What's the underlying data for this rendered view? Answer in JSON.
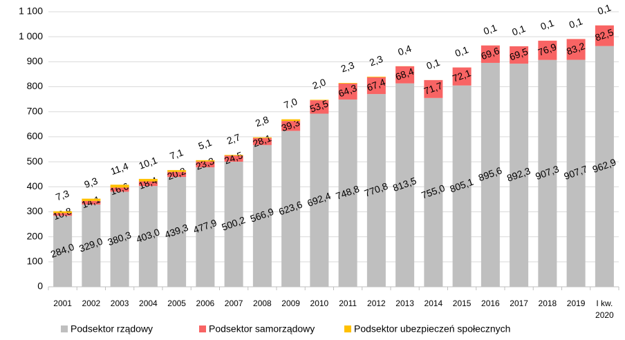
{
  "chart_data": {
    "type": "stacked-bar",
    "categories": [
      "2001",
      "2002",
      "2003",
      "2004",
      "2005",
      "2006",
      "2007",
      "2008",
      "2009",
      "2010",
      "2011",
      "2012",
      "2013",
      "2014",
      "2015",
      "2016",
      "2017",
      "2018",
      "2019",
      "I kw. 2020"
    ],
    "series": [
      {
        "name": "Podsektor rządowy",
        "color": "#bfbfbf",
        "values": [
          284.0,
          329.0,
          380.3,
          403.0,
          439.3,
          477.9,
          500.2,
          566.9,
          623.6,
          692.4,
          748.8,
          770.8,
          813.5,
          755.0,
          805.1,
          895.6,
          892.3,
          907.3,
          907.7,
          962.9
        ],
        "value_labels": [
          "284,0",
          "329,0",
          "380,3",
          "403,0",
          "439,3",
          "477,9",
          "500,2",
          "566,9",
          "623,6",
          "692,4",
          "748,8",
          "770,8",
          "813,5",
          "755,0",
          "805,1",
          "895,6",
          "892,3",
          "907,3",
          "907,7",
          "962,9"
        ]
      },
      {
        "name": "Podsektor samorządowy",
        "color": "#f86464",
        "values": [
          10.8,
          14.1,
          16.6,
          18.4,
          20.2,
          23.3,
          24.5,
          28.1,
          39.3,
          53.5,
          64.3,
          67.4,
          68.4,
          71.7,
          72.1,
          69.6,
          69.5,
          76.9,
          83.2,
          82.5
        ],
        "value_labels": [
          "10,8",
          "14,1",
          "16,6",
          "18,4",
          "20,2",
          "23,3",
          "24,5",
          "28,1",
          "39,3",
          "53,5",
          "64,3",
          "67,4",
          "68,4",
          "71,7",
          "72,1",
          "69,6",
          "69,5",
          "76,9",
          "83,2",
          "82,5"
        ]
      },
      {
        "name": "Podsektor ubezpieczeń społecznych",
        "color": "#ffc000",
        "values": [
          7.3,
          9.3,
          11.4,
          10.1,
          7.1,
          5.1,
          2.7,
          2.8,
          7.0,
          2.0,
          2.3,
          2.3,
          0.4,
          0.1,
          0.1,
          0.1,
          0.1,
          0.1,
          0.1,
          0.1
        ],
        "value_labels": [
          "7,3",
          "9,3",
          "11,4",
          "10,1",
          "7,1",
          "5,1",
          "2,7",
          "2,8",
          "7,0",
          "2,0",
          "2,3",
          "2,3",
          "0,4",
          "0,1",
          "0,1",
          "0,1",
          "0,1",
          "0,1",
          "0,1",
          "0,1"
        ]
      }
    ],
    "ylim": [
      0,
      1100
    ],
    "yticks": [
      0,
      100,
      200,
      300,
      400,
      500,
      600,
      700,
      800,
      900,
      {
        "value": 1000,
        "label": "1 000"
      },
      {
        "value": 1100,
        "label": "1 100"
      }
    ],
    "grid": true,
    "legend": "bottom"
  }
}
